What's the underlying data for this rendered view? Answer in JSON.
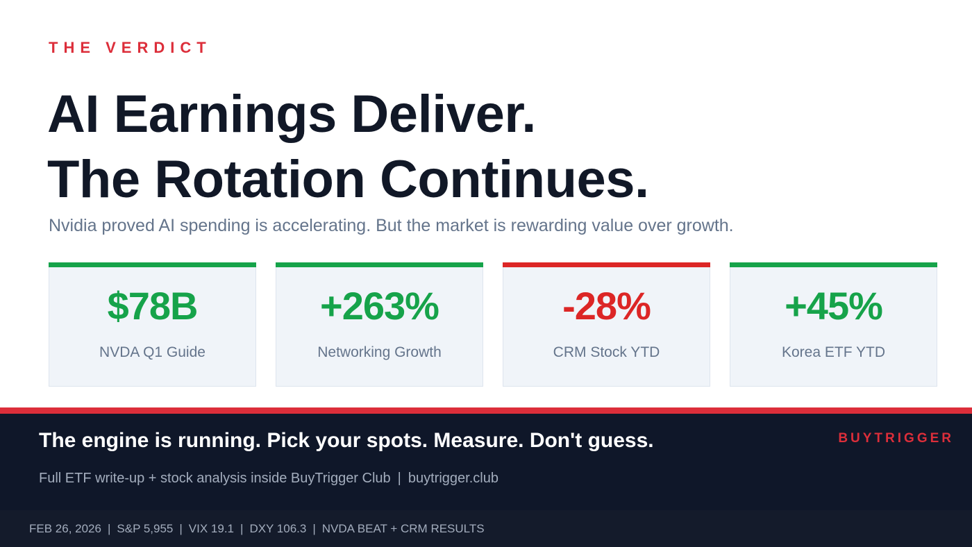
{
  "eyebrow": "THE VERDICT",
  "headline": {
    "line1": "AI Earnings Deliver.",
    "line2": "The Rotation Continues."
  },
  "subhead": "Nvidia proved AI spending is accelerating. But the market is rewarding value over growth.",
  "stats": [
    {
      "value": "$78B",
      "label": "NVDA Q1 Guide",
      "tone": "positive",
      "color": "#16a34a"
    },
    {
      "value": "+263%",
      "label": "Networking Growth",
      "tone": "positive",
      "color": "#16a34a"
    },
    {
      "value": "-28%",
      "label": "CRM Stock YTD",
      "tone": "negative",
      "color": "#dc2626"
    },
    {
      "value": "+45%",
      "label": "Korea ETF YTD",
      "tone": "positive",
      "color": "#16a34a"
    }
  ],
  "banner": {
    "tagline": "The engine is running. Pick your spots. Measure. Don't guess.",
    "brand": "BUYTRIGGER",
    "promo_text": "Full ETF write-up + stock analysis inside BuyTrigger Club",
    "separator": "|",
    "promo_link": "buytrigger.club"
  },
  "ticker": {
    "separator": "|",
    "items": [
      "FEB 26, 2026",
      "S&P 5,955",
      "VIX 19.1",
      "DXY 106.3",
      "NVDA BEAT + CRM RESULTS"
    ]
  },
  "colors": {
    "accent_red": "#dc2e3a",
    "positive_green": "#16a34a",
    "negative_red": "#dc2626",
    "navy": "#0f1729"
  }
}
